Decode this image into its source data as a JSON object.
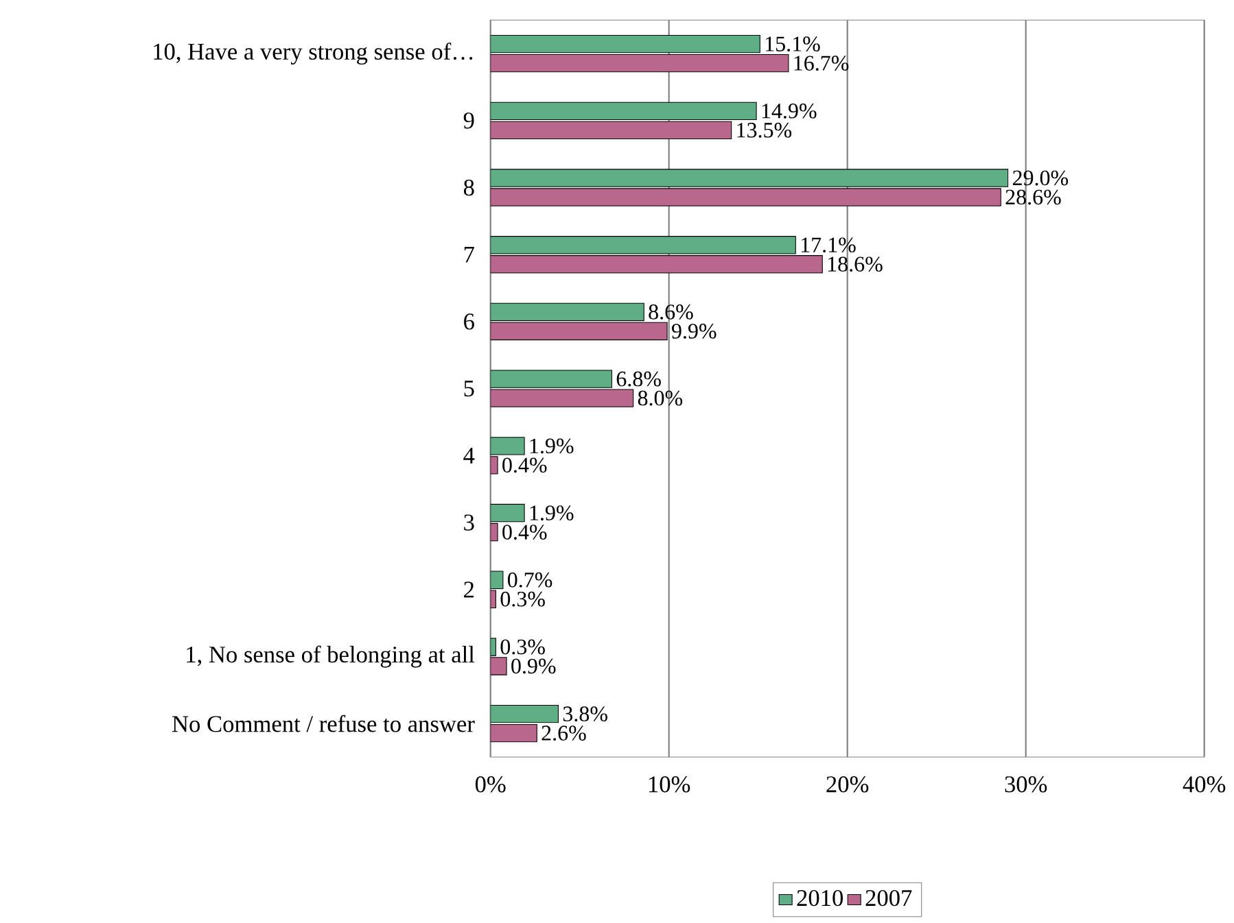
{
  "chart_data": {
    "type": "bar",
    "orientation": "horizontal",
    "categories": [
      "10, Have a very strong sense of…",
      "9",
      "8",
      "7",
      "6",
      "5",
      "4",
      "3",
      "2",
      "1, No sense of belonging at all",
      "No Comment / refuse to answer"
    ],
    "series": [
      {
        "name": "2010",
        "color": "#5fae86",
        "values": [
          15.1,
          14.9,
          29.0,
          17.1,
          8.6,
          6.8,
          1.9,
          1.9,
          0.7,
          0.3,
          3.8
        ],
        "value_labels": [
          "15.1%",
          "14.9%",
          "29.0%",
          "17.1%",
          "8.6%",
          "6.8%",
          "1.9%",
          "1.9%",
          "0.7%",
          "0.3%",
          "3.8%"
        ]
      },
      {
        "name": "2007",
        "color": "#b9678d",
        "values": [
          16.7,
          13.5,
          28.6,
          18.6,
          9.9,
          8.0,
          0.4,
          0.4,
          0.3,
          0.9,
          2.6
        ],
        "value_labels": [
          "16.7%",
          "13.5%",
          "28.6%",
          "18.6%",
          "9.9%",
          "8.0%",
          "0.4%",
          "0.4%",
          "0.3%",
          "0.9%",
          "2.6%"
        ]
      }
    ],
    "xlim": [
      0,
      40
    ],
    "xticks": [
      {
        "value": 0,
        "label": "0%"
      },
      {
        "value": 10,
        "label": "10%"
      },
      {
        "value": 20,
        "label": "20%"
      },
      {
        "value": 30,
        "label": "30%"
      },
      {
        "value": 40,
        "label": "40%"
      }
    ],
    "grid": "x",
    "legend": "bottom"
  }
}
